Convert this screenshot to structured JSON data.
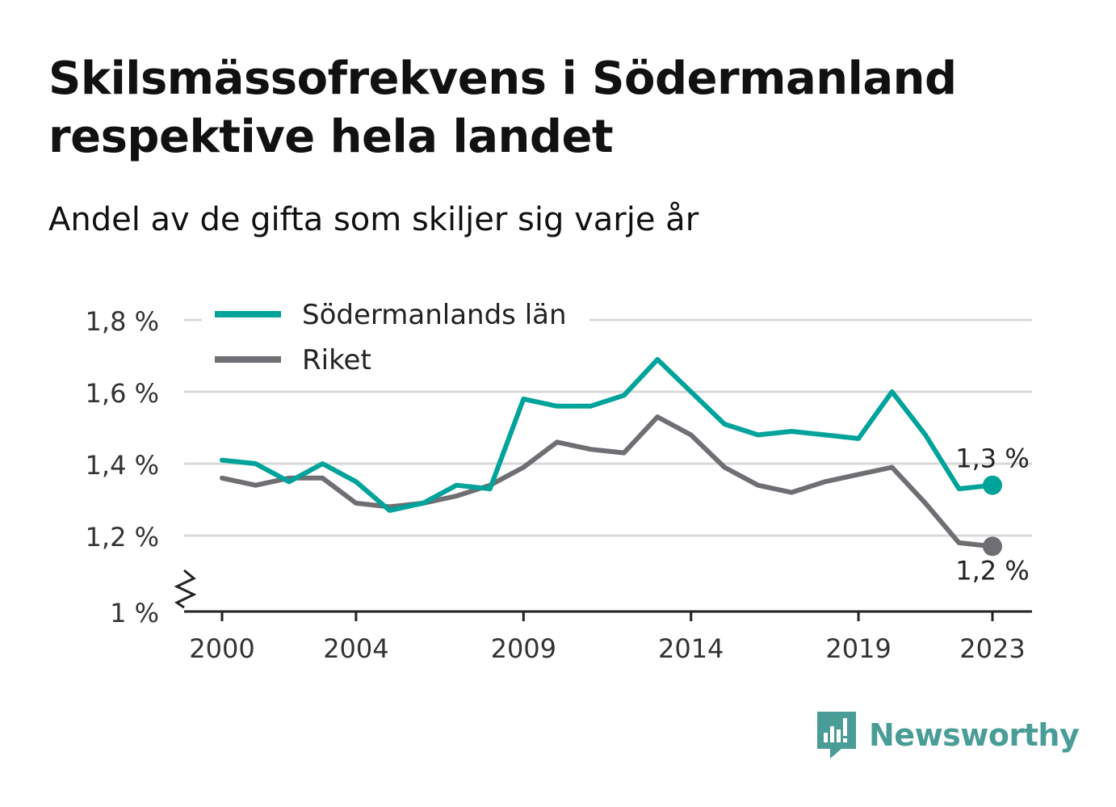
{
  "header": {
    "title": "Skilsmässofrekvens i Södermanland respektive hela landet",
    "subtitle": "Andel av de gifta som skiljer sig varje år"
  },
  "brand": {
    "name": "Newsworthy",
    "color": "#4a9d97"
  },
  "chart_data": {
    "type": "line",
    "x": [
      2000,
      2001,
      2002,
      2003,
      2004,
      2005,
      2006,
      2007,
      2008,
      2009,
      2010,
      2011,
      2012,
      2013,
      2014,
      2015,
      2016,
      2017,
      2018,
      2019,
      2020,
      2021,
      2022,
      2023
    ],
    "series": [
      {
        "name": "Södermanlands län",
        "color": "#00a39a",
        "values": [
          1.41,
          1.4,
          1.35,
          1.4,
          1.35,
          1.27,
          1.29,
          1.34,
          1.33,
          1.58,
          1.56,
          1.56,
          1.59,
          1.69,
          1.6,
          1.51,
          1.48,
          1.49,
          1.48,
          1.47,
          1.6,
          1.48,
          1.33,
          1.34
        ],
        "end_label": "1,3 %"
      },
      {
        "name": "Riket",
        "color": "#6e6e73",
        "values": [
          1.36,
          1.34,
          1.36,
          1.36,
          1.29,
          1.28,
          1.29,
          1.31,
          1.34,
          1.39,
          1.46,
          1.44,
          1.43,
          1.53,
          1.48,
          1.39,
          1.34,
          1.32,
          1.35,
          1.37,
          1.39,
          1.29,
          1.18,
          1.17
        ],
        "end_label": "1,2 %"
      }
    ],
    "x_ticks": [
      2000,
      2004,
      2009,
      2014,
      2019,
      2023
    ],
    "y_ticks": [
      1.0,
      1.2,
      1.4,
      1.6,
      1.8
    ],
    "y_tick_labels": [
      "1 %",
      "1,2 %",
      "1,4 %",
      "1,6 %",
      "1,8 %"
    ],
    "ylim": [
      1.0,
      1.8
    ],
    "axis_break": true,
    "grid": true,
    "legend_position": "top-left"
  }
}
